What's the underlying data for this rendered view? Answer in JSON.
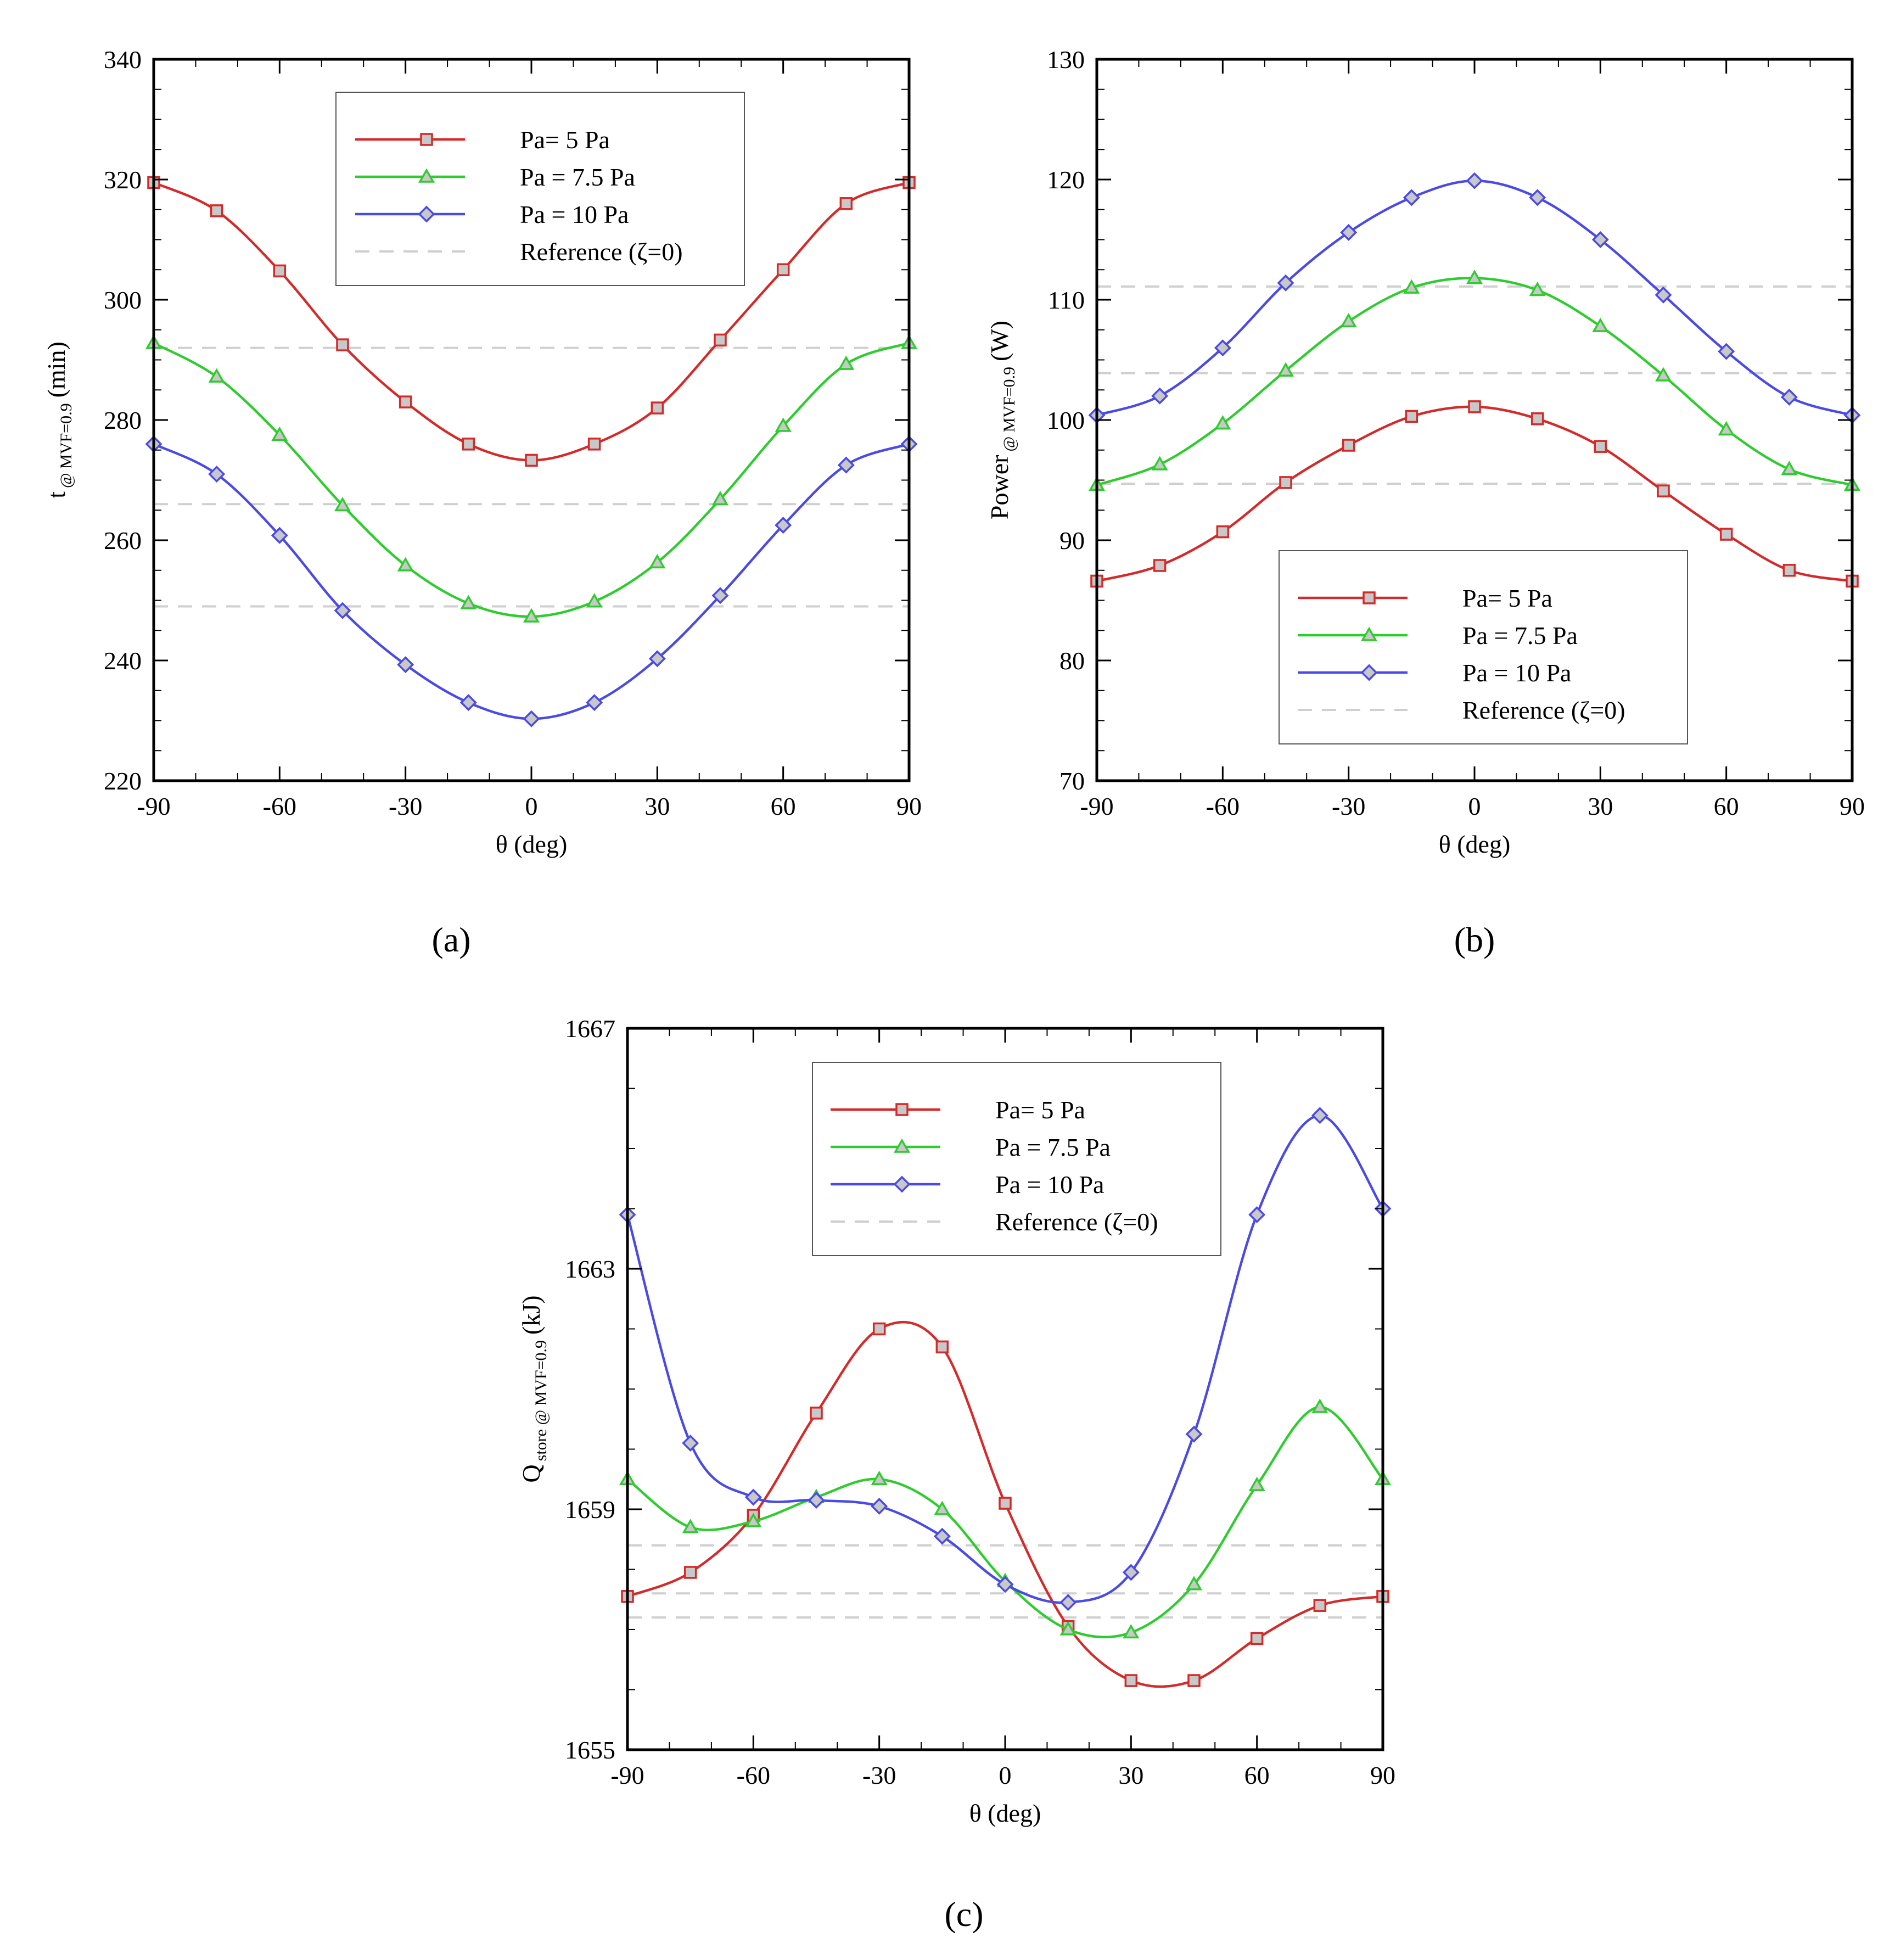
{
  "legend_entries": [
    "Pa= 5 Pa",
    "Pa = 7.5 Pa",
    "Pa = 10 Pa",
    "Reference (ζ=0)"
  ],
  "colors": {
    "red": "#d42a2a",
    "green": "#2ecc2e",
    "blue": "#4a4ae6",
    "reference": "#cfcfcf",
    "marker_fill": "#c8c8c8"
  },
  "chart_data": [
    {
      "id": "a",
      "caption": "(a)",
      "type": "line",
      "xlabel": "θ (deg)",
      "ylabel_main": "t",
      "ylabel_sub": "@ MVF=0.9",
      "ylabel_unit": "(min)",
      "xlim": [
        -90,
        90
      ],
      "ylim": [
        220,
        340
      ],
      "xticks": [
        -90,
        -60,
        -30,
        0,
        30,
        60,
        90
      ],
      "yticks": [
        220,
        240,
        260,
        280,
        300,
        320,
        340
      ],
      "x": [
        -90,
        -75,
        -60,
        -45,
        -30,
        -15,
        0,
        15,
        30,
        45,
        60,
        75,
        90
      ],
      "series": [
        {
          "name": "Pa= 5 Pa",
          "marker": "square",
          "values": [
            319.5,
            314.8,
            304.8,
            292.5,
            283.0,
            276.0,
            273.3,
            276.0,
            282.0,
            293.3,
            305.0,
            316.0,
            319.5
          ]
        },
        {
          "name": "Pa = 7.5 Pa",
          "marker": "triangle",
          "values": [
            292.8,
            287.2,
            277.5,
            265.8,
            255.8,
            249.5,
            247.3,
            249.8,
            256.3,
            266.8,
            279.0,
            289.3,
            292.8
          ]
        },
        {
          "name": "Pa = 10 Pa",
          "marker": "diamond",
          "values": [
            276.0,
            271.0,
            260.8,
            248.3,
            239.3,
            233.0,
            230.3,
            233.0,
            240.3,
            250.8,
            262.5,
            272.5,
            276.0
          ]
        }
      ],
      "reference_values": [
        292.0,
        266.0,
        249.0
      ],
      "legend_position": "top-center"
    },
    {
      "id": "b",
      "caption": "(b)",
      "type": "line",
      "xlabel": "θ (deg)",
      "ylabel_main": "Power",
      "ylabel_sub": "@ MVF=0.9",
      "ylabel_unit": "(W)",
      "xlim": [
        -90,
        90
      ],
      "ylim": [
        70,
        130
      ],
      "xticks": [
        -90,
        -60,
        -30,
        0,
        30,
        60,
        90
      ],
      "yticks": [
        70,
        80,
        90,
        100,
        110,
        120,
        130
      ],
      "x": [
        -90,
        -75,
        -60,
        -45,
        -30,
        -15,
        0,
        15,
        30,
        45,
        60,
        75,
        90
      ],
      "series": [
        {
          "name": "Pa= 5 Pa",
          "marker": "square",
          "values": [
            86.6,
            87.9,
            90.7,
            94.8,
            97.9,
            100.3,
            101.1,
            100.1,
            97.8,
            94.1,
            90.5,
            87.5,
            86.6
          ]
        },
        {
          "name": "Pa = 7.5 Pa",
          "marker": "triangle",
          "values": [
            94.6,
            96.3,
            99.7,
            104.1,
            108.2,
            111.0,
            111.8,
            110.8,
            107.8,
            103.7,
            99.2,
            95.9,
            94.6
          ]
        },
        {
          "name": "Pa = 10 Pa",
          "marker": "diamond",
          "values": [
            100.4,
            102.0,
            106.0,
            111.4,
            115.6,
            118.5,
            119.9,
            118.5,
            115.0,
            110.4,
            105.7,
            101.9,
            100.4
          ]
        }
      ],
      "reference_values": [
        111.1,
        103.9,
        94.7
      ],
      "legend_position": "bottom-right"
    },
    {
      "id": "c",
      "caption": "(c)",
      "type": "line",
      "xlabel": "θ (deg)",
      "ylabel_main": "Q",
      "ylabel_sub": "store @ MVF=0.9",
      "ylabel_unit": "(kJ)",
      "xlim": [
        -90,
        90
      ],
      "ylim": [
        1655,
        1667
      ],
      "xticks": [
        -90,
        -60,
        -30,
        0,
        30,
        60,
        90
      ],
      "yticks": [
        1655,
        1659,
        1663,
        1667
      ],
      "x": [
        -90,
        -75,
        -60,
        -45,
        -30,
        -15,
        0,
        15,
        30,
        45,
        60,
        75,
        90
      ],
      "series": [
        {
          "name": "Pa= 5 Pa",
          "marker": "square",
          "values": [
            1657.55,
            1657.95,
            1658.9,
            1660.6,
            1662.0,
            1661.7,
            1659.1,
            1657.05,
            1656.15,
            1656.15,
            1656.85,
            1657.4,
            1657.55
          ]
        },
        {
          "name": "Pa = 7.5 Pa",
          "marker": "triangle",
          "values": [
            1659.5,
            1658.7,
            1658.8,
            1659.2,
            1659.5,
            1659.0,
            1657.8,
            1657.0,
            1656.95,
            1657.75,
            1659.4,
            1660.7,
            1659.5
          ]
        },
        {
          "name": "Pa = 10 Pa",
          "marker": "diamond",
          "values": [
            1663.9,
            1660.1,
            1659.2,
            1659.15,
            1659.05,
            1658.55,
            1657.75,
            1657.45,
            1657.95,
            1660.25,
            1663.9,
            1665.55,
            1664.0
          ]
        }
      ],
      "reference_values": [
        1658.4,
        1657.6,
        1657.2
      ],
      "legend_position": "top-center"
    }
  ]
}
